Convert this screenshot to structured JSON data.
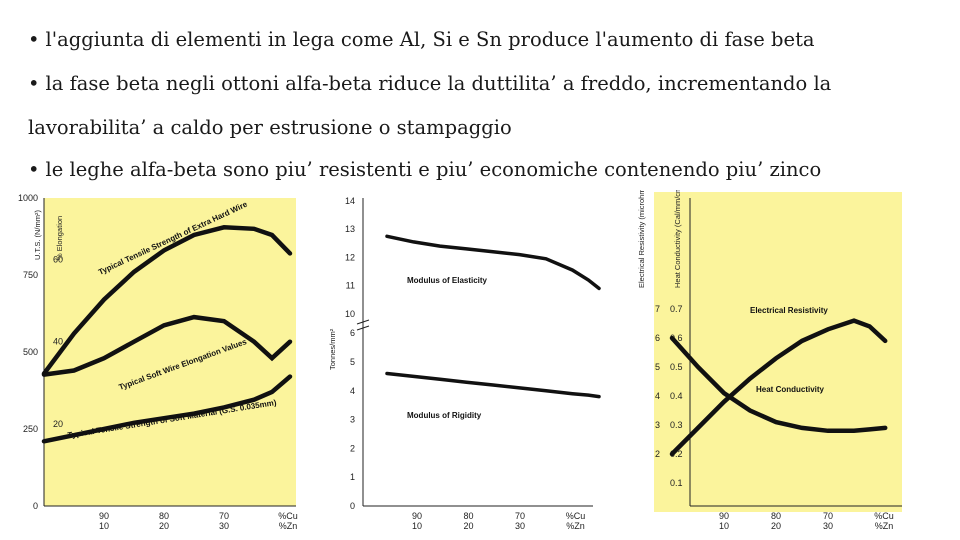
{
  "bullets": [
    "l'aggiunta di elementi in lega come Al, Si e Sn produce l'aumento di fase beta",
    "la fase beta negli ottoni alfa-beta riduce la duttilita’ a freddo, incrementando la",
    "lavorabilita’ a caldo per estrusione o stampaggio",
    "le leghe alfa-beta sono piu’ resistenti e piu’ economiche contenendo piu’ zinco"
  ],
  "bullet_symbol": "•",
  "colors": {
    "chart_bg": "#fbf49c",
    "curve": "#111111",
    "text": "#1a1a1a"
  },
  "chart_data": [
    {
      "type": "line",
      "ylabel_left": "U.T.S. (N/mm²)",
      "ylabel_right": "% Elongation",
      "yticks_left": [
        "1000",
        "750",
        "500",
        "250",
        "0"
      ],
      "yticks_right": [
        "60",
        "40",
        "20"
      ],
      "xticks_cu": [
        "90",
        "80",
        "70"
      ],
      "xticks_zn": [
        "10",
        "20",
        "30"
      ],
      "xunit_cu": "%Cu",
      "xunit_zn": "%Zn",
      "x_zinc": [
        0,
        5,
        10,
        15,
        20,
        25,
        30,
        35,
        38,
        41
      ],
      "series": [
        {
          "name": "Typical Tensile Strength of Extra Hard Wire",
          "uts": [
            430,
            560,
            670,
            760,
            830,
            880,
            905,
            900,
            880,
            820
          ]
        },
        {
          "name": "Typical Soft Wire Elongation Values",
          "elong": [
            32,
            33,
            36,
            40,
            44,
            46,
            45,
            40,
            36,
            40
          ]
        },
        {
          "name": "Typical Tensile Strength of Soft Material (G.S. 0.035mm)",
          "uts": [
            210,
            230,
            250,
            270,
            285,
            300,
            320,
            345,
            370,
            420
          ]
        }
      ]
    },
    {
      "type": "line",
      "ylabel": "Tonnes/mm²",
      "yticks_upper": [
        "14",
        "13",
        "12",
        "11",
        "10"
      ],
      "yticks_lower": [
        "6",
        "5",
        "4",
        "3",
        "2",
        "1",
        "0"
      ],
      "xticks_cu": [
        "90",
        "80",
        "70"
      ],
      "xticks_zn": [
        "10",
        "20",
        "30"
      ],
      "xunit_cu": "%Cu",
      "xunit_zn": "%Zn",
      "x_zinc": [
        0,
        5,
        10,
        15,
        20,
        25,
        30,
        35,
        38,
        40
      ],
      "series": [
        {
          "name": "Modulus of Elasticity",
          "values": [
            12.75,
            12.55,
            12.4,
            12.3,
            12.2,
            12.1,
            11.95,
            11.55,
            11.2,
            10.9
          ]
        },
        {
          "name": "Modulus of Rigidity",
          "values": [
            4.6,
            4.5,
            4.4,
            4.3,
            4.2,
            4.1,
            4.0,
            3.9,
            3.85,
            3.8
          ]
        }
      ]
    },
    {
      "type": "line",
      "ylabel_left": "Electrical Resistivity (microhm/cm)",
      "ylabel_right": "Heat Conductivity (Cal/mm/cm² s°C)",
      "yticks_left": [
        "7",
        "6",
        "5",
        "4",
        "3",
        "2"
      ],
      "yticks_right": [
        "0.7",
        "0.6",
        "0.5",
        "0.4",
        "0.3",
        "0.2",
        "0.1"
      ],
      "xticks_cu": [
        "90",
        "80",
        "70"
      ],
      "xticks_zn": [
        "10",
        "20",
        "30"
      ],
      "xunit_cu": "%Cu",
      "xunit_zn": "%Zn",
      "x_zinc": [
        0,
        5,
        10,
        15,
        20,
        25,
        30,
        35,
        38,
        41
      ],
      "series": [
        {
          "name": "Electrical Resistivity",
          "values": [
            2.0,
            2.9,
            3.8,
            4.6,
            5.3,
            5.9,
            6.3,
            6.6,
            6.4,
            5.9
          ]
        },
        {
          "name": "Heat Conductivity",
          "values": [
            0.6,
            0.5,
            0.41,
            0.35,
            0.31,
            0.29,
            0.28,
            0.28,
            0.285,
            0.29
          ]
        }
      ]
    }
  ]
}
